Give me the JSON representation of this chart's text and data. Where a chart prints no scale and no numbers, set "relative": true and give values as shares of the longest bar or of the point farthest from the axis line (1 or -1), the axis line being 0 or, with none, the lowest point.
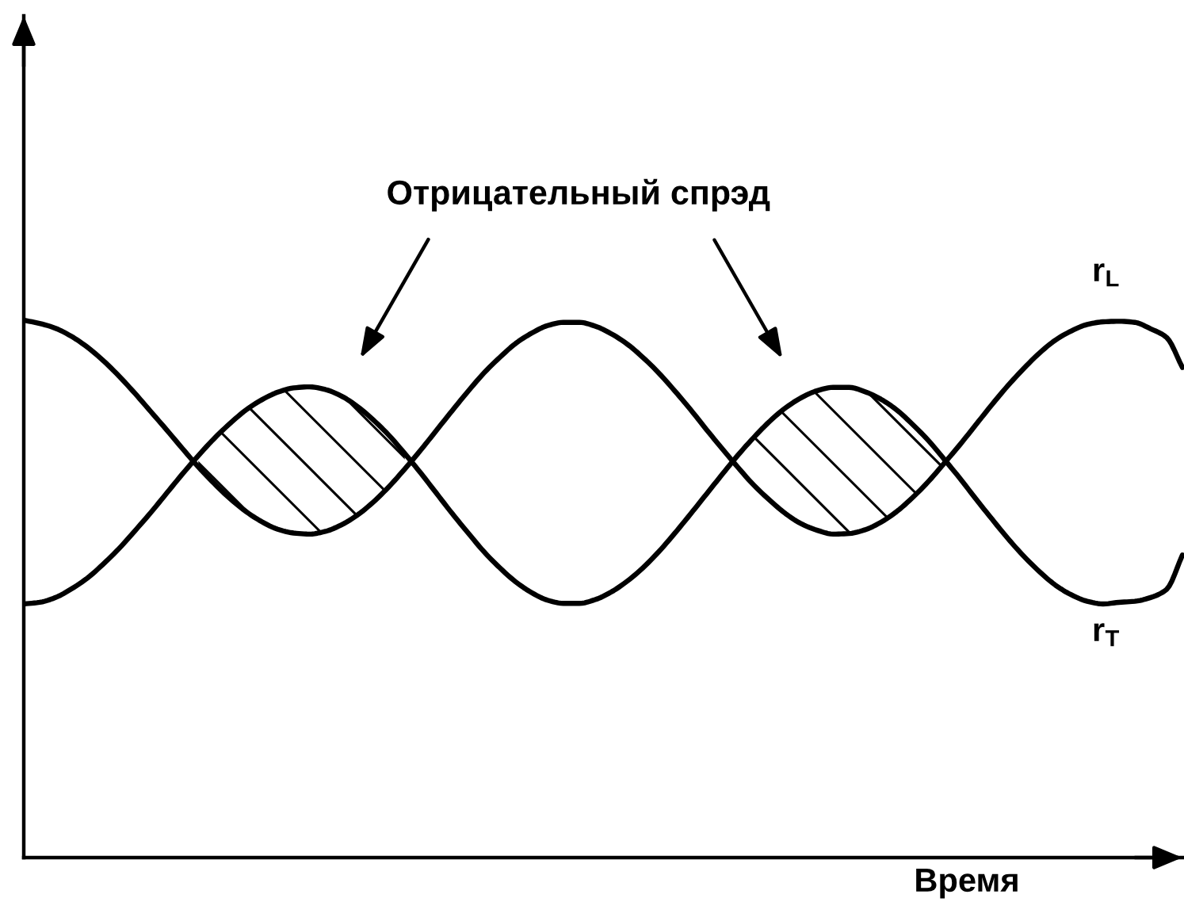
{
  "chart_data": {
    "type": "line",
    "relative": true,
    "categories": [
      null,
      null,
      null,
      null,
      null,
      null,
      null,
      null,
      null,
      null,
      null,
      null,
      null,
      null,
      null,
      null,
      null,
      null,
      null,
      null,
      null,
      null,
      null,
      null,
      null,
      null,
      null,
      null,
      null,
      null,
      null,
      null,
      null,
      null,
      null,
      null,
      null,
      null,
      null,
      null,
      null,
      null,
      null,
      null,
      null,
      null,
      null,
      null,
      null,
      null,
      null,
      null,
      null,
      null,
      null,
      null,
      null,
      null,
      null,
      null,
      null,
      null,
      null,
      null,
      null,
      null,
      null,
      null,
      null,
      null,
      null,
      null,
      null,
      null
    ],
    "series": [
      {
        "name": "r$_{L}$",
        "color": "#000000",
        "values": [
          1.0,
          0.994,
          0.985,
          0.97,
          0.95,
          0.925,
          0.896,
          0.864,
          0.83,
          0.796,
          0.761,
          0.727,
          0.696,
          0.668,
          0.644,
          0.625,
          0.611,
          0.604,
          0.602,
          0.607,
          0.619,
          0.637,
          0.661,
          0.69,
          0.723,
          0.758,
          0.795,
          0.832,
          0.868,
          0.902,
          0.931,
          0.957,
          0.976,
          0.99,
          0.996,
          0.996,
          0.989,
          0.975,
          0.956,
          0.931,
          0.902,
          0.869,
          0.834,
          0.797,
          0.761,
          0.726,
          0.693,
          0.665,
          0.64,
          0.621,
          0.609,
          0.602,
          0.603,
          0.61,
          0.624,
          0.644,
          0.67,
          0.7,
          0.734,
          0.769,
          0.806,
          0.843,
          0.878,
          0.91,
          0.939,
          0.963,
          0.98,
          0.992,
          0.997,
          0.998,
          0.996,
          0.984,
          0.968,
          0.912
        ]
      },
      {
        "name": "r$_{T}$",
        "color": "#000000",
        "values": [
          0.472,
          0.475,
          0.484,
          0.5,
          0.52,
          0.546,
          0.575,
          0.608,
          0.642,
          0.678,
          0.714,
          0.748,
          0.78,
          0.808,
          0.833,
          0.852,
          0.866,
          0.874,
          0.876,
          0.871,
          0.859,
          0.84,
          0.815,
          0.786,
          0.752,
          0.716,
          0.678,
          0.64,
          0.604,
          0.569,
          0.539,
          0.513,
          0.493,
          0.479,
          0.473,
          0.473,
          0.48,
          0.494,
          0.514,
          0.539,
          0.569,
          0.603,
          0.639,
          0.676,
          0.713,
          0.749,
          0.782,
          0.812,
          0.837,
          0.856,
          0.869,
          0.875,
          0.875,
          0.867,
          0.853,
          0.833,
          0.806,
          0.776,
          0.741,
          0.705,
          0.667,
          0.63,
          0.594,
          0.561,
          0.532,
          0.507,
          0.489,
          0.477,
          0.472,
          0.475,
          0.477,
          0.484,
          0.499,
          0.563
        ],
        "lower": [
          null,
          null,
          null,
          null,
          null,
          null,
          null,
          null,
          null,
          null,
          null,
          0.727,
          0.696,
          0.668,
          0.644,
          0.625,
          0.611,
          0.604,
          0.602,
          0.607,
          0.619,
          0.637,
          0.661,
          0.69,
          0.723,
          null,
          null,
          null,
          null,
          null,
          null,
          null,
          null,
          null,
          null,
          null,
          null,
          null,
          null,
          null,
          null,
          null,
          null,
          null,
          null,
          0.726,
          0.693,
          0.665,
          0.64,
          0.621,
          0.609,
          0.602,
          0.603,
          0.61,
          0.624,
          0.644,
          0.67,
          0.7,
          0.734,
          null,
          null,
          null,
          null,
          null,
          null,
          null,
          null,
          null,
          null,
          null,
          null,
          null,
          null,
          null
        ],
        "upper": [
          null,
          null,
          null,
          null,
          null,
          null,
          null,
          null,
          null,
          null,
          null,
          0.748,
          0.78,
          0.808,
          0.833,
          0.852,
          0.866,
          0.874,
          0.876,
          0.871,
          0.859,
          0.84,
          0.815,
          0.786,
          0.752,
          null,
          null,
          null,
          null,
          null,
          null,
          null,
          null,
          null,
          null,
          null,
          null,
          null,
          null,
          null,
          null,
          null,
          null,
          null,
          null,
          0.749,
          0.782,
          0.812,
          0.837,
          0.856,
          0.869,
          0.875,
          0.875,
          0.867,
          0.853,
          0.833,
          0.806,
          0.776,
          0.741,
          null,
          null,
          null,
          null,
          null,
          null,
          null,
          null,
          null,
          null,
          null,
          null,
          null,
          null,
          null
        ]
      }
    ],
    "annotations": [
      "Отрицательный спрэд"
    ],
    "xlabel": "Время"
  }
}
